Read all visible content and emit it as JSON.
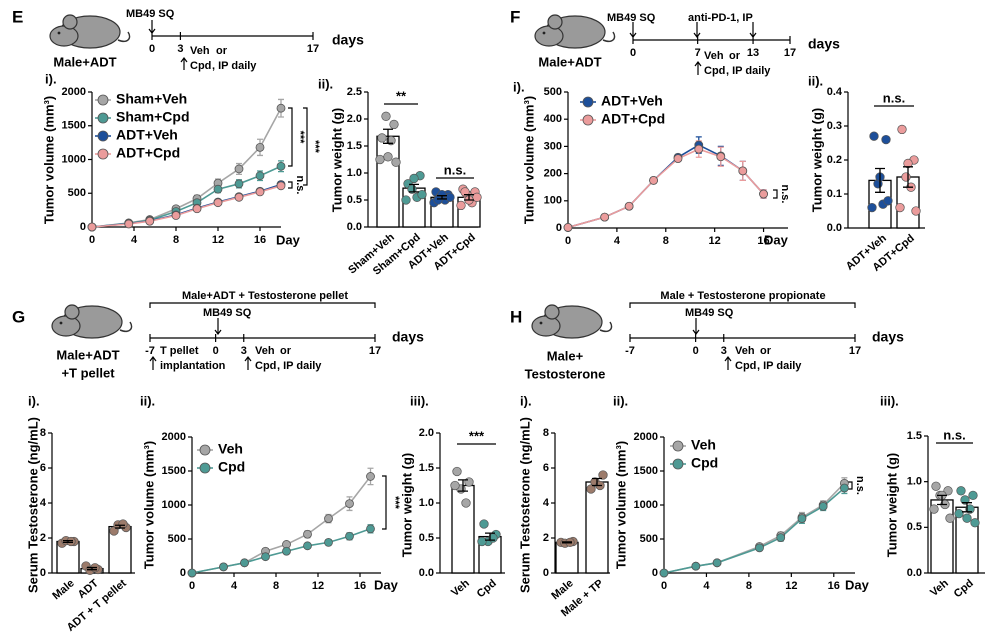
{
  "panels": [
    {
      "letter": "E",
      "mouse": [
        "Male+ADT"
      ],
      "notes": [
        {
          "text": "MB49 SQ"
        },
        {
          "text": "Veh",
          "color": "#1d4f9a"
        },
        {
          "text": "or"
        },
        {
          "text": "Cpd",
          "color": "#eb9c9c"
        },
        {
          "text": ", IP daily"
        }
      ],
      "timeline": [
        0,
        3,
        17
      ],
      "unit": "days"
    },
    {
      "letter": "F",
      "mouse": [
        "Male+ADT"
      ],
      "notes": [
        {
          "text": "MB49 SQ"
        },
        {
          "text": "anti-PD-1, IP"
        },
        {
          "text": "Veh",
          "color": "#1d4f9a"
        },
        {
          "text": "or"
        },
        {
          "text": "Cpd",
          "color": "#eb9c9c"
        },
        {
          "text": ", IP daily"
        }
      ],
      "timeline": [
        0,
        7,
        13,
        17
      ],
      "unit": "days"
    },
    {
      "letter": "G",
      "header": "Male+ADT + Testosterone pellet",
      "mouse": [
        "Male+ADT",
        "+T pellet"
      ],
      "notes": [
        {
          "text": "MB49 SQ"
        },
        {
          "text": "T pellet"
        },
        {
          "text": "implantation"
        },
        {
          "text": "Veh",
          "color": "#a6a6a6"
        },
        {
          "text": "or"
        },
        {
          "text": "Cpd",
          "color": "#4e9a94"
        },
        {
          "text": ", IP daily"
        }
      ],
      "timeline": [
        -7,
        0,
        3,
        17
      ],
      "unit": "days"
    },
    {
      "letter": "H",
      "header": "Male + Testosterone propionate",
      "mouse": [
        "Male+",
        "Testosterone"
      ],
      "notes": [
        {
          "text": "MB49 SQ"
        },
        {
          "text": "Veh",
          "color": "#a6a6a6"
        },
        {
          "text": "or"
        },
        {
          "text": "Cpd",
          "color": "#4e9a94"
        },
        {
          "text": ", IP daily"
        }
      ],
      "timeline": [
        -7,
        0,
        3,
        17
      ],
      "unit": "days"
    }
  ],
  "chart_data": [
    {
      "type": "line",
      "label": "i).",
      "ylabel": "Tumor volume (mm³)",
      "xlabel": "Day",
      "x": [
        0,
        3.5,
        5.5,
        8,
        10,
        12,
        14,
        16,
        18
      ],
      "xlim": [
        0,
        18
      ],
      "xticks": [
        0,
        4,
        8,
        12,
        16
      ],
      "ylim": [
        0,
        2000
      ],
      "yticks": [
        0,
        500,
        1000,
        1500,
        2000
      ],
      "series": [
        {
          "name": "Sham+Veh",
          "color": "#a6a6a6",
          "values": [
            0,
            60,
            110,
            270,
            420,
            650,
            860,
            1180,
            1760
          ],
          "errors": [
            0,
            10,
            15,
            30,
            50,
            60,
            80,
            120,
            130
          ]
        },
        {
          "name": "Sham+Cpd",
          "color": "#4e9a94",
          "values": [
            0,
            55,
            100,
            230,
            360,
            560,
            640,
            760,
            900
          ],
          "errors": [
            0,
            10,
            15,
            25,
            40,
            50,
            60,
            70,
            80
          ]
        },
        {
          "name": "ADT+Veh",
          "color": "#1d4f9a",
          "values": [
            0,
            50,
            90,
            180,
            280,
            370,
            450,
            530,
            630
          ],
          "errors": [
            0,
            8,
            10,
            20,
            20,
            25,
            30,
            30,
            40
          ]
        },
        {
          "name": "ADT+Cpd",
          "color": "#eb9c9c",
          "values": [
            0,
            45,
            85,
            170,
            270,
            360,
            440,
            520,
            610
          ],
          "errors": [
            0,
            8,
            10,
            20,
            20,
            25,
            30,
            30,
            40
          ]
        }
      ],
      "annotations": [
        "***",
        "***",
        "n.s."
      ]
    },
    {
      "type": "bar",
      "label": "ii).",
      "ylabel": "Tumor weight (g)",
      "categories": [
        "Sham+Veh",
        "Sham+Cpd",
        "ADT+Veh",
        "ADT+Cpd"
      ],
      "values": [
        1.68,
        0.72,
        0.55,
        0.55
      ],
      "errors": [
        0.13,
        0.07,
        0.03,
        0.05
      ],
      "points": [
        [
          1.65,
          1.9,
          2.05,
          1.6,
          1.25,
          1.2,
          1.3
        ],
        [
          0.8,
          0.95,
          0.7,
          0.55,
          0.5,
          0.6,
          0.9
        ],
        [
          0.65,
          0.6,
          0.55,
          0.5,
          0.45,
          0.55,
          0.6,
          0.5
        ],
        [
          0.7,
          0.65,
          0.6,
          0.45,
          0.4,
          0.55,
          0.5,
          0.65
        ]
      ],
      "colors": [
        "#a6a6a6",
        "#4e9a94",
        "#1d4f9a",
        "#eb9c9c"
      ],
      "label_colors": [
        "#a6a6a6",
        "#4e9a94",
        "#1d4f9a",
        "#eb9c9c"
      ],
      "ylim": [
        0,
        2.5
      ],
      "yticks": [
        {
          "value": 0,
          "label": "0.0"
        },
        0.5,
        {
          "value": 1,
          "label": "1.0"
        },
        1.5,
        {
          "value": 2,
          "label": "2.0"
        },
        2.5
      ],
      "annotations": [
        "**",
        "n.s."
      ]
    },
    {
      "type": "line",
      "label": "i).",
      "ylabel": "Tumor volume (mm³)",
      "xlabel": "Day",
      "x": [
        0,
        3,
        5,
        7,
        9,
        10.7,
        12.5,
        14.3,
        16
      ],
      "xlim": [
        0,
        18
      ],
      "xticks": [
        0,
        4,
        8,
        12,
        16
      ],
      "ylim": [
        0,
        500
      ],
      "yticks": [
        0,
        100,
        200,
        300,
        400,
        500
      ],
      "series": [
        {
          "name": "ADT+Veh",
          "color": "#1d4f9a",
          "values": [
            2,
            40,
            80,
            175,
            260,
            305,
            265,
            210,
            125
          ],
          "errors": [
            0,
            3,
            5,
            8,
            10,
            30,
            35,
            35,
            15
          ]
        },
        {
          "name": "ADT+Cpd",
          "color": "#eb9c9c",
          "values": [
            2,
            40,
            80,
            175,
            255,
            290,
            262,
            210,
            125
          ],
          "errors": [
            0,
            3,
            5,
            8,
            10,
            30,
            35,
            35,
            15
          ]
        }
      ],
      "annotations": [
        "n.s."
      ]
    },
    {
      "type": "bar",
      "label": "ii).",
      "ylabel": "Tumor weight (g)",
      "categories": [
        "ADT+Veh",
        "ADT+Cpd"
      ],
      "values": [
        0.14,
        0.15
      ],
      "errors": [
        0.035,
        0.03
      ],
      "points": [
        [
          0.27,
          0.26,
          0.13,
          0.07,
          0.06,
          0.08,
          0.15
        ],
        [
          0.29,
          0.2,
          0.15,
          0.12,
          0.06,
          0.05,
          0.19
        ]
      ],
      "colors": [
        "#1d4f9a",
        "#eb9c9c"
      ],
      "label_colors": [
        "#1d4f9a",
        "#eb9c9c"
      ],
      "ylim": [
        0,
        0.4
      ],
      "yticks": [
        {
          "value": 0,
          "label": "0.0"
        },
        0.1,
        0.2,
        0.3,
        0.4
      ],
      "annotations": [
        "n.s."
      ]
    },
    {
      "type": "bar",
      "label": "i).",
      "ylabel": "Serum Testosterone (ng/mL)",
      "categories": [
        "Male",
        "ADT",
        "ADT + T pellet"
      ],
      "values": [
        1.8,
        0.25,
        2.65
      ],
      "errors": [
        0.05,
        0.06,
        0.08
      ],
      "points": [
        [
          1.7,
          1.8,
          1.85,
          1.8
        ],
        [
          0.4,
          0.2,
          0.15,
          0.3
        ],
        [
          2.4,
          2.6,
          2.75,
          2.8
        ]
      ],
      "colors": [
        "#9c7b6b",
        "#9c7b6b",
        "#9c7b6b"
      ],
      "label_colors": [
        "#000000",
        "#000000",
        "#000000"
      ],
      "ylim": [
        0,
        8
      ],
      "yticks": [
        0,
        2,
        4,
        6,
        8
      ],
      "annotations": []
    },
    {
      "type": "line",
      "label": "ii).",
      "ylabel": "Tumor volume (mm³)",
      "xlabel": "Day",
      "x": [
        0,
        3,
        5,
        7,
        9,
        11,
        13,
        15,
        17
      ],
      "xlim": [
        0,
        18
      ],
      "xticks": [
        0,
        4,
        8,
        12,
        16
      ],
      "ylim": [
        0,
        2000
      ],
      "yticks": [
        0,
        500,
        1000,
        1500,
        2000
      ],
      "series": [
        {
          "name": "Veh",
          "color": "#a6a6a6",
          "values": [
            0,
            90,
            150,
            320,
            420,
            570,
            800,
            1020,
            1420
          ],
          "errors": [
            0,
            10,
            15,
            30,
            30,
            50,
            60,
            100,
            120
          ]
        },
        {
          "name": "Cpd",
          "color": "#4e9a94",
          "values": [
            0,
            90,
            150,
            240,
            320,
            400,
            450,
            540,
            650
          ],
          "errors": [
            0,
            10,
            10,
            20,
            20,
            30,
            40,
            50,
            60
          ]
        }
      ],
      "annotations": [
        "***"
      ]
    },
    {
      "type": "bar",
      "label": "iii).",
      "ylabel": "Tumor weight (g)",
      "categories": [
        "Veh",
        "Cpd"
      ],
      "values": [
        1.25,
        0.52
      ],
      "errors": [
        0.08,
        0.05
      ],
      "points": [
        [
          1.45,
          1.3,
          1.2,
          1.0,
          1.25
        ],
        [
          0.7,
          0.55,
          0.45,
          0.5,
          0.45
        ]
      ],
      "colors": [
        "#a6a6a6",
        "#4e9a94"
      ],
      "label_colors": [
        "#a6a6a6",
        "#4e9a94"
      ],
      "ylim": [
        0,
        2
      ],
      "yticks": [
        {
          "value": 0,
          "label": "0.0"
        },
        0.5,
        {
          "value": 1,
          "label": "1.0"
        },
        1.5,
        {
          "value": 2,
          "label": "2.0"
        }
      ],
      "annotations": [
        "***"
      ]
    },
    {
      "type": "bar",
      "label": "i).",
      "ylabel": "Serum Testosterone (ng/mL)",
      "categories": [
        "Male",
        "Male + TP"
      ],
      "values": [
        1.75,
        5.2
      ],
      "errors": [
        0.03,
        0.2
      ],
      "points": [
        [
          1.75,
          1.8,
          1.7,
          1.75
        ],
        [
          4.8,
          5.6,
          5.2,
          5.0
        ]
      ],
      "colors": [
        "#9c7b6b",
        "#9c7b6b"
      ],
      "label_colors": [
        "#000000",
        "#000000"
      ],
      "ylim": [
        0,
        8
      ],
      "yticks": [
        0,
        2,
        4,
        6,
        8
      ],
      "annotations": []
    },
    {
      "type": "line",
      "label": "ii).",
      "ylabel": "Tumor volume (mm³)",
      "xlabel": "Day",
      "x": [
        0,
        3,
        5,
        9,
        11,
        13,
        15,
        17
      ],
      "xlim": [
        0,
        18
      ],
      "xticks": [
        0,
        4,
        8,
        12,
        16
      ],
      "ylim": [
        0,
        2000
      ],
      "yticks": [
        0,
        500,
        1000,
        1500,
        2000
      ],
      "series": [
        {
          "name": "Veh",
          "color": "#a6a6a6",
          "values": [
            0,
            100,
            150,
            390,
            550,
            820,
            1000,
            1320
          ],
          "errors": [
            0,
            10,
            15,
            30,
            50,
            70,
            60,
            80
          ]
        },
        {
          "name": "Cpd",
          "color": "#4e9a94",
          "values": [
            0,
            100,
            150,
            370,
            520,
            800,
            980,
            1250
          ],
          "errors": [
            0,
            10,
            15,
            30,
            50,
            70,
            60,
            80
          ]
        }
      ],
      "annotations": [
        "n.s."
      ]
    },
    {
      "type": "bar",
      "label": "iii).",
      "ylabel": "Tumor weight (g)",
      "categories": [
        "Veh",
        "Cpd"
      ],
      "values": [
        0.8,
        0.72
      ],
      "errors": [
        0.05,
        0.05
      ],
      "points": [
        [
          0.95,
          0.9,
          0.85,
          0.75,
          0.7,
          0.6,
          0.85
        ],
        [
          0.9,
          0.85,
          0.8,
          0.7,
          0.65,
          0.55,
          0.6
        ]
      ],
      "colors": [
        "#a6a6a6",
        "#4e9a94"
      ],
      "label_colors": [
        "#a6a6a6",
        "#4e9a94"
      ],
      "ylim": [
        0,
        1.5
      ],
      "yticks": [
        {
          "value": 0,
          "label": "0.0"
        },
        0.5,
        {
          "value": 1,
          "label": "1.0"
        },
        1.5
      ],
      "annotations": [
        "n.s."
      ]
    }
  ]
}
